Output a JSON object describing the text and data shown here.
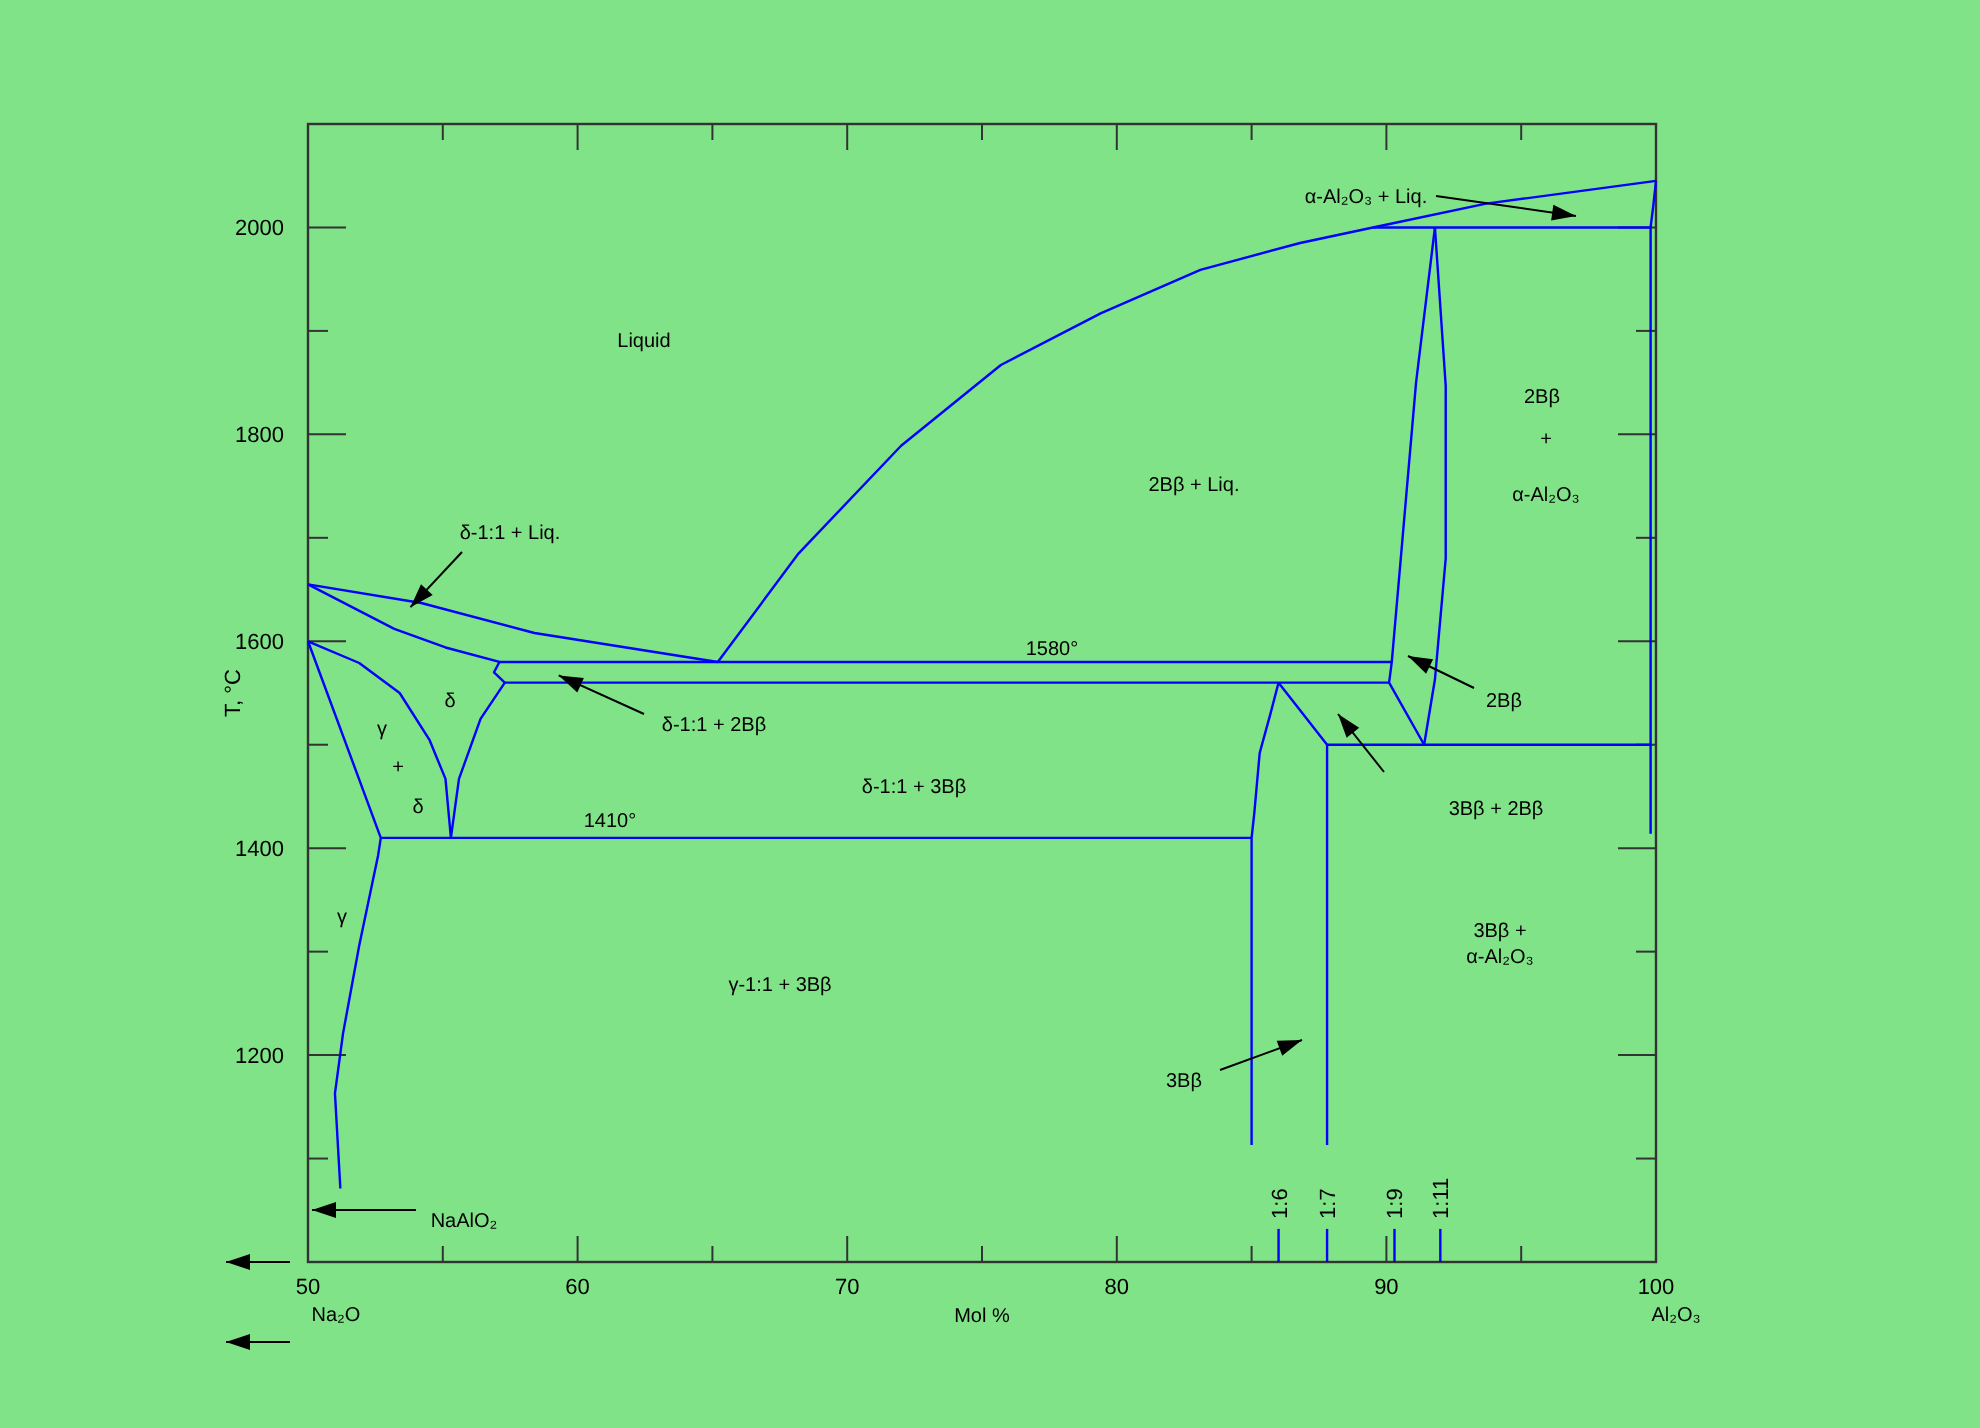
{
  "chart_data": {
    "type": "line",
    "xlabel": "Mol %",
    "ylabel": "T, °C",
    "xlim": [
      50,
      100
    ],
    "ylim": [
      1000,
      2100
    ],
    "xticks": [
      50,
      {
        "value": 55,
        "label": null
      },
      60,
      {
        "value": 65,
        "label": null
      },
      70,
      {
        "value": 75,
        "label": null
      },
      80,
      {
        "value": 85,
        "label": null
      },
      90,
      {
        "value": 95,
        "label": null
      },
      100
    ],
    "yticks": [
      {
        "value": 1100,
        "label": null
      },
      1200,
      {
        "value": 1300,
        "label": null
      },
      1400,
      {
        "value": 1500,
        "label": null
      },
      1600,
      {
        "value": 1700,
        "label": null
      },
      1800,
      {
        "value": 1900,
        "label": null
      },
      2000
    ],
    "series": [
      {
        "color": "#0000ff",
        "x": [
          50,
          54.2,
          58.4,
          65.2,
          68.2,
          72,
          75.7,
          79.4,
          83.1,
          86.8,
          89.5,
          93.7,
          100
        ],
        "values": [
          1655,
          1637,
          1608,
          1580,
          1685,
          1789,
          1867,
          1917,
          1959,
          1985,
          2000,
          2023,
          2045
        ]
      },
      {
        "color": "#0000ff",
        "x": [
          100,
          99.9,
          99.8,
          99.8
        ],
        "values": [
          2045,
          2021,
          2000,
          1414
        ]
      },
      {
        "color": "#0000ff",
        "x": [
          89.5,
          99.8
        ],
        "values": [
          2000,
          2000
        ]
      },
      {
        "color": "#0000ff",
        "x": [
          91.8,
          91.1,
          90.6,
          90.2,
          90.1,
          91.4
        ],
        "values": [
          2000,
          1850,
          1700,
          1580,
          1560,
          1500
        ]
      },
      {
        "color": "#0000ff",
        "x": [
          91.8,
          92.2,
          92.2,
          91.8,
          91.4
        ],
        "values": [
          2000,
          1847,
          1680,
          1563,
          1500
        ]
      },
      {
        "color": "#0000ff",
        "x": [
          50,
          53.2,
          55.1,
          57.1,
          90.2
        ],
        "values": [
          1655,
          1612,
          1594,
          1580,
          1580
        ]
      },
      {
        "color": "#0000ff",
        "x": [
          57.3,
          90.1
        ],
        "values": [
          1560,
          1560
        ]
      },
      {
        "color": "#0000ff",
        "x": [
          57.1,
          56.9,
          57.3
        ],
        "values": [
          1580,
          1570,
          1560
        ]
      },
      {
        "color": "#0000ff",
        "x": [
          50,
          51.9,
          53.4,
          54.5,
          55.1,
          55.3,
          55.6,
          56.4,
          57.3
        ],
        "values": [
          1600,
          1579,
          1550,
          1505,
          1467,
          1410,
          1467,
          1525,
          1560
        ]
      },
      {
        "color": "#0000ff",
        "x": [
          50,
          52.7,
          52.6,
          51.9,
          51.3,
          51.0,
          51.2
        ],
        "values": [
          1600,
          1410,
          1393,
          1306,
          1221,
          1163,
          1071
        ]
      },
      {
        "color": "#0000ff",
        "x": [
          52.7,
          85.0
        ],
        "values": [
          1410,
          1410
        ]
      },
      {
        "color": "#0000ff",
        "x": [
          85.0,
          85.0,
          85.1,
          85.3,
          85.7,
          86.0
        ],
        "values": [
          1113,
          1410,
          1434,
          1492,
          1530,
          1560
        ]
      },
      {
        "color": "#0000ff",
        "x": [
          86.0,
          87.8,
          87.8
        ],
        "values": [
          1560,
          1500,
          1113
        ]
      },
      {
        "color": "#0000ff",
        "x": [
          87.8,
          99.8
        ],
        "values": [
          1500,
          1500
        ]
      },
      {
        "name": "1:6",
        "color": "#0000ff",
        "x": [
          86.0,
          86.0
        ],
        "values": [
          1000,
          1032
        ]
      },
      {
        "name": "1:7",
        "color": "#0000ff",
        "x": [
          87.8,
          87.8
        ],
        "values": [
          1000,
          1032
        ]
      },
      {
        "name": "1:9",
        "color": "#0000ff",
        "x": [
          90.3,
          90.3
        ],
        "values": [
          1000,
          1032
        ]
      },
      {
        "name": "1:11",
        "color": "#0000ff",
        "x": [
          92.0,
          92.0
        ],
        "values": [
          1000,
          1032
        ]
      }
    ],
    "annotations": [
      "Liquid",
      "2Bβ + Liq.",
      {
        "text": "δ-1:1 + Liq.",
        "x": 53.8,
        "y": 1633
      },
      {
        "text": "δ-1:1 + 2Bβ",
        "x": 59.3,
        "y": 1567
      },
      "1580°",
      "1410°",
      "δ-1:1 + 3Bβ",
      "γ-1:1 + 3Bβ",
      "γ",
      "+",
      "δ",
      "δ",
      "γ",
      "2Bβ",
      "3Bβ + 2Bβ",
      "3Bβ +",
      "α-Al₂O₃",
      "3Bβ",
      "2Bβ",
      "+",
      "α-Al₂O₃",
      "α-Al₂O₃ + Liq.",
      "NaAlO₂",
      "Na₂O",
      "Al₂O₃"
    ]
  }
}
